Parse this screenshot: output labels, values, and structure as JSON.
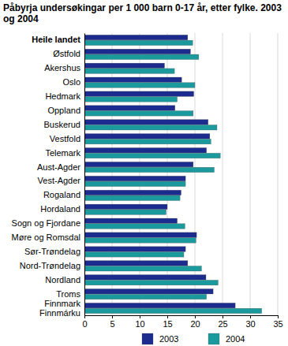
{
  "chart_data": {
    "type": "bar",
    "orientation": "horizontal",
    "title": "Påbyrja undersøkingar per 1 000 barn 0-17 år, etter fylke. 2003 og 2004",
    "categories": [
      "Heile landet",
      "Østfold",
      "Akershus",
      "Oslo",
      "Hedmark",
      "Oppland",
      "Buskerud",
      "Vestfold",
      "Telemark",
      "Aust-Agder",
      "Vest-Agder",
      "Rogaland",
      "Hordaland",
      "Sogn og Fjordane",
      "Møre og Romsdal",
      "Sør-Trøndelag",
      "Nord-Trøndelag",
      "Nordland",
      "Troms",
      "Finnmark\nFinnmárku"
    ],
    "series": [
      {
        "name": "2003",
        "color": "#1c2b8e",
        "values": [
          18.7,
          19.2,
          14.5,
          17.6,
          19.8,
          16.4,
          22.4,
          22.7,
          22.1,
          19.7,
          18.3,
          17.5,
          15.0,
          16.8,
          20.3,
          18.3,
          18.7,
          22.0,
          23.3,
          27.3
        ]
      },
      {
        "name": "2004",
        "color": "#1a9a9c",
        "values": [
          19.6,
          20.7,
          16.3,
          20.0,
          16.8,
          19.7,
          24.0,
          22.9,
          24.6,
          23.5,
          18.3,
          17.3,
          14.8,
          18.2,
          20.2,
          18.0,
          21.2,
          24.2,
          22.1,
          32.1
        ]
      }
    ],
    "xlim": [
      0,
      35
    ],
    "xticks": [
      0,
      5,
      10,
      15,
      20,
      25,
      30,
      35
    ],
    "grid": true,
    "legend": "bottom"
  }
}
